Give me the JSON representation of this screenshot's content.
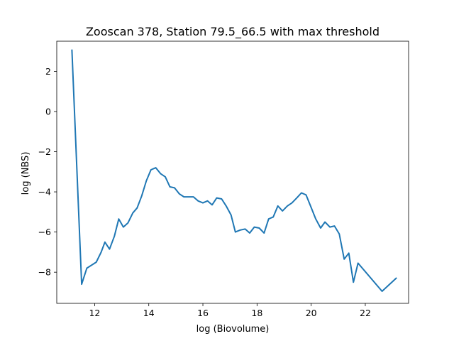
{
  "chart_data": {
    "type": "line",
    "title": "Zooscan 378, Station 79.5_66.5 with max threshold",
    "xlabel": "log (Biovolume)",
    "ylabel": "log (NBS)",
    "xlim": [
      10.6,
      23.6
    ],
    "ylim": [
      -9.55,
      3.5
    ],
    "xticks": [
      12,
      14,
      16,
      18,
      20,
      22
    ],
    "yticks": [
      2,
      0,
      -2,
      -4,
      -6,
      -8
    ],
    "grid": false,
    "color": "#1f77b4",
    "series": [
      {
        "x": [
          11.16,
          11.52,
          11.71,
          12.06,
          12.24,
          12.38,
          12.55,
          12.73,
          12.89,
          13.06,
          13.23,
          13.41,
          13.57,
          13.74,
          13.91,
          14.08,
          14.26,
          14.44,
          14.61,
          14.78,
          14.95,
          15.13,
          15.3,
          15.48,
          15.65,
          15.82,
          16.0,
          16.17,
          16.34,
          16.51,
          16.69,
          16.86,
          17.04,
          17.2,
          17.38,
          17.56,
          17.73,
          17.9,
          18.08,
          18.26,
          18.43,
          18.6,
          18.77,
          18.94,
          19.12,
          19.29,
          19.47,
          19.64,
          19.81,
          19.99,
          20.17,
          20.35,
          20.51,
          20.69,
          20.86,
          21.04,
          21.22,
          21.39,
          21.56,
          21.73,
          22.62,
          23.14
        ],
        "y": [
          3.05,
          -8.6,
          -7.8,
          -7.5,
          -7.0,
          -6.5,
          -6.85,
          -6.2,
          -5.35,
          -5.75,
          -5.55,
          -5.05,
          -4.8,
          -4.2,
          -3.45,
          -2.9,
          -2.8,
          -3.1,
          -3.25,
          -3.75,
          -3.8,
          -4.1,
          -4.25,
          -4.25,
          -4.25,
          -4.45,
          -4.55,
          -4.45,
          -4.65,
          -4.3,
          -4.35,
          -4.7,
          -5.15,
          -6.0,
          -5.9,
          -5.85,
          -6.05,
          -5.75,
          -5.8,
          -6.05,
          -5.35,
          -5.25,
          -4.7,
          -4.95,
          -4.7,
          -4.55,
          -4.3,
          -4.05,
          -4.15,
          -4.75,
          -5.35,
          -5.8,
          -5.5,
          -5.75,
          -5.7,
          -6.1,
          -7.35,
          -7.05,
          -8.5,
          -7.55,
          -8.95,
          -8.3
        ]
      }
    ]
  }
}
